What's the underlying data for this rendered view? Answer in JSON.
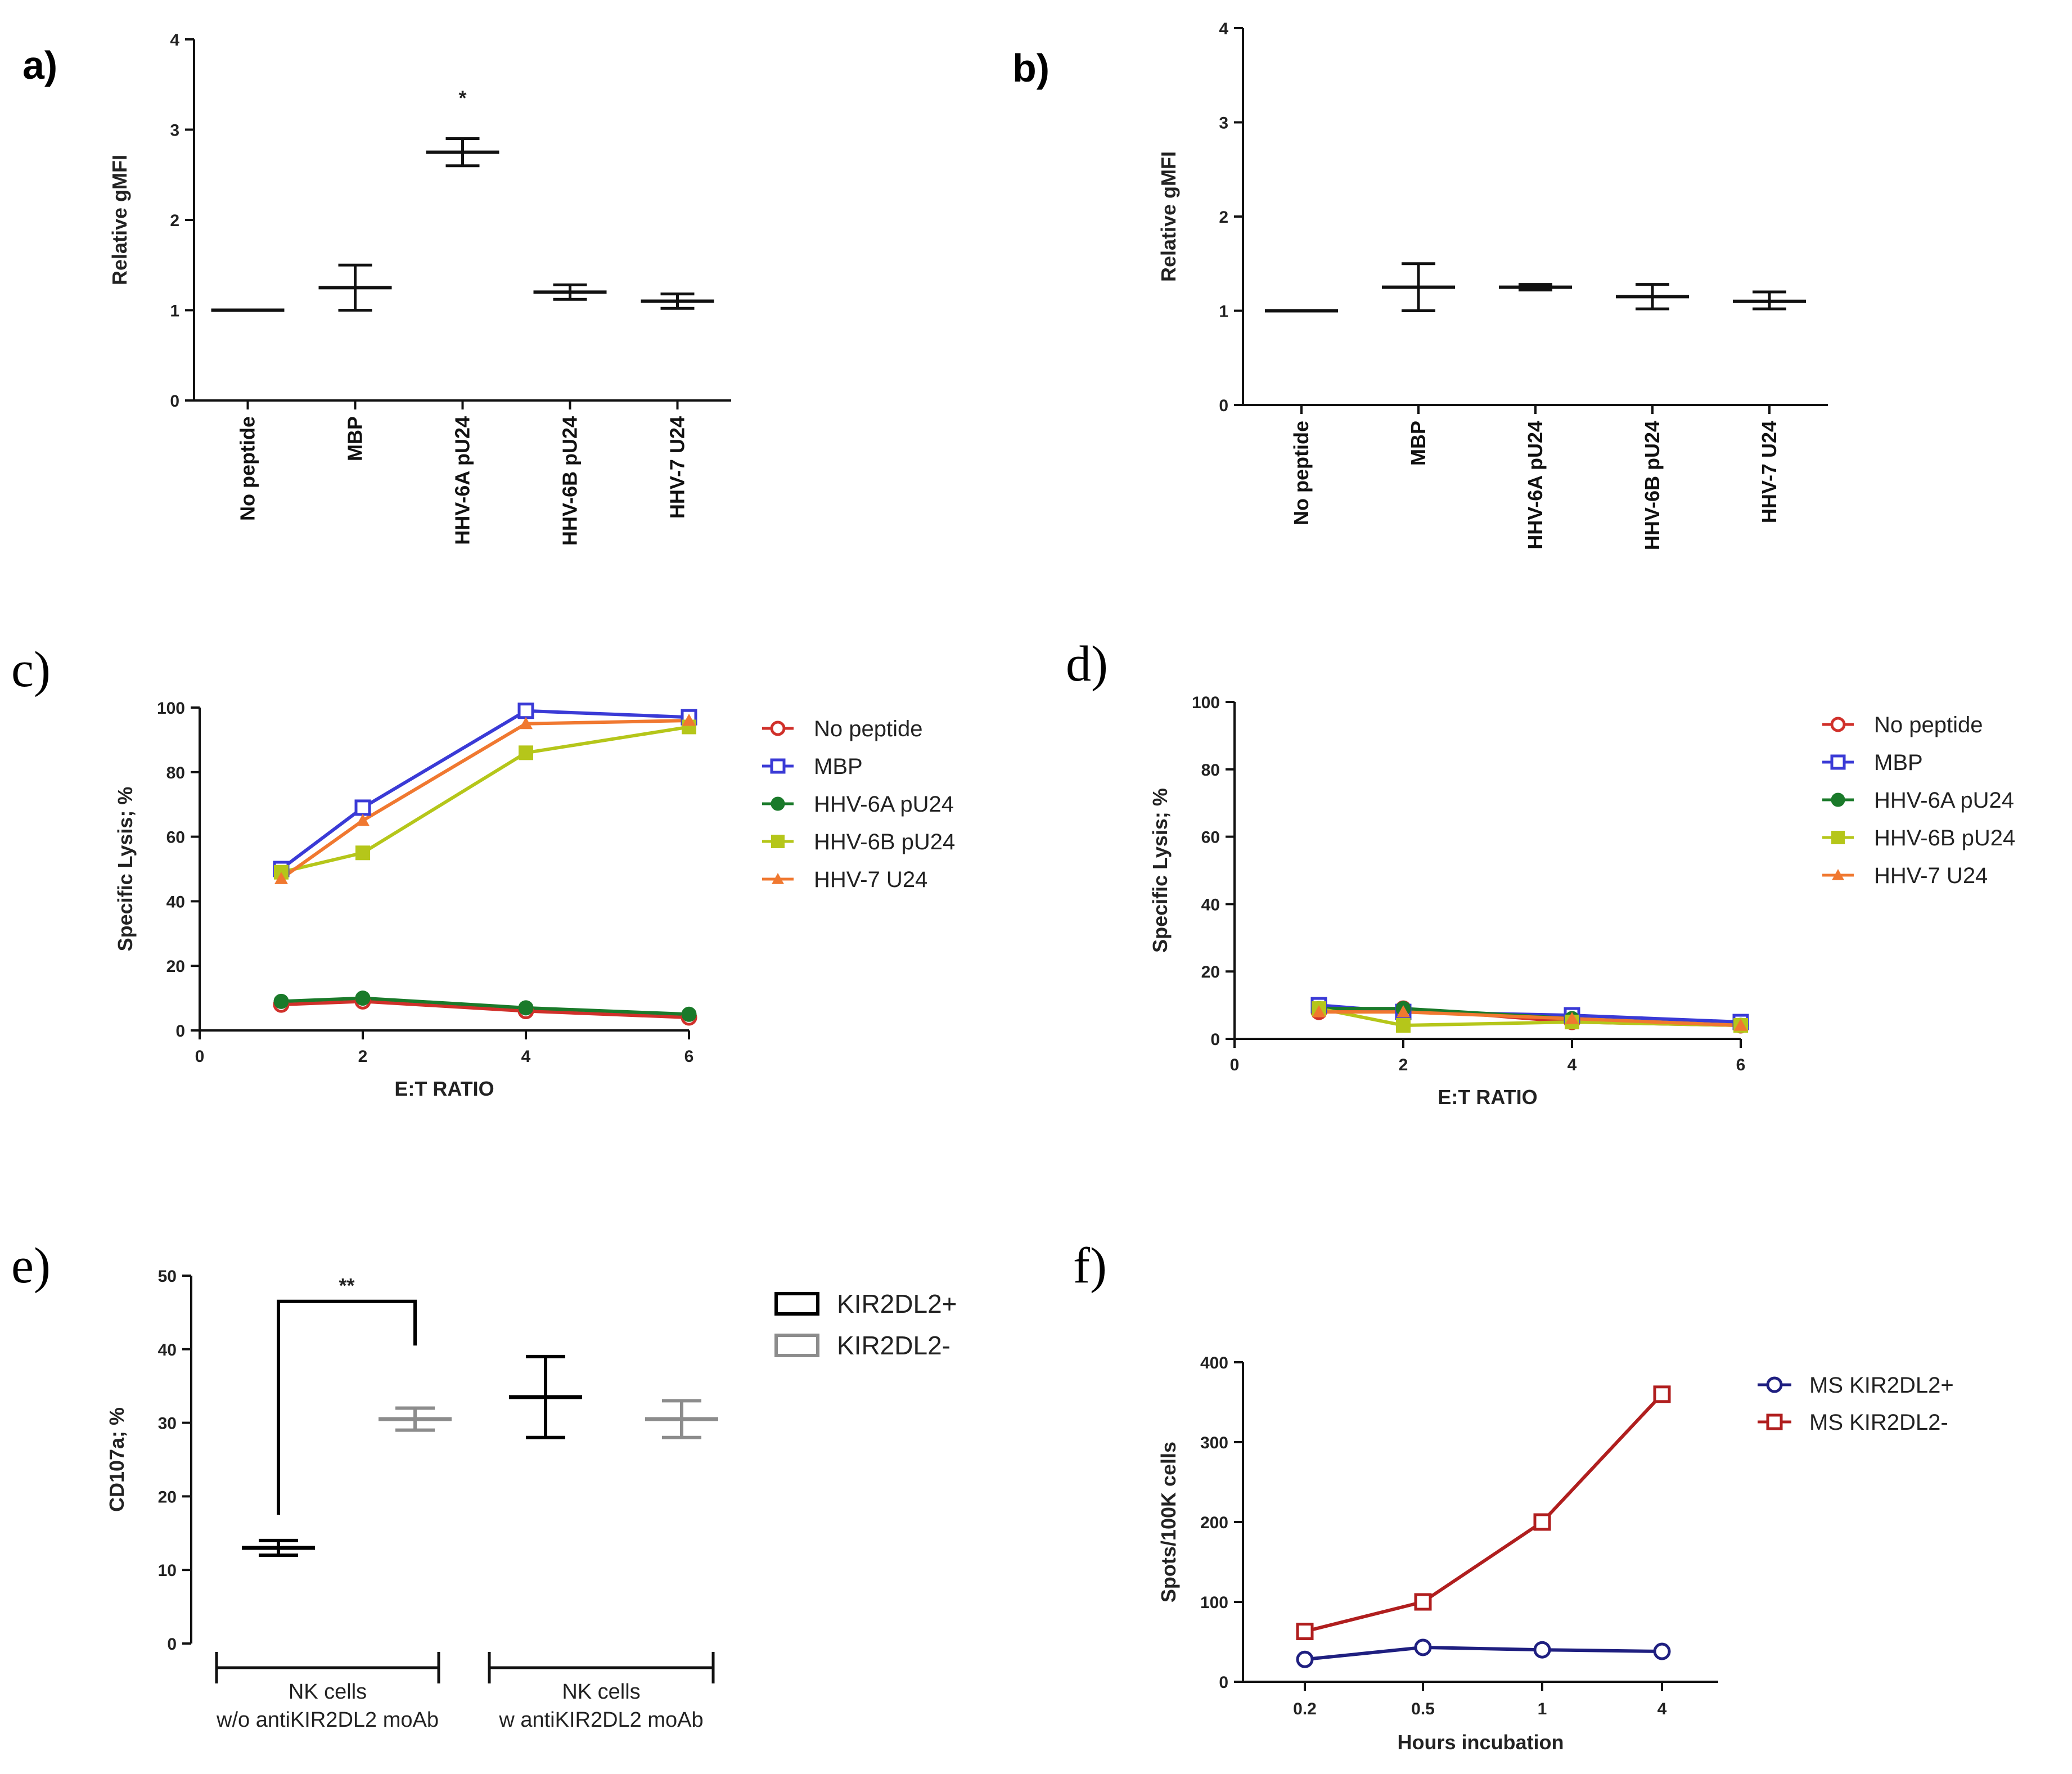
{
  "panels": {
    "a": "a)",
    "b": "b)",
    "c": "c)",
    "d": "d)",
    "e": "e)",
    "f": "f)"
  },
  "chart_data": [
    {
      "id": "a",
      "type": "scatter",
      "ylabel": "Relative gMFI",
      "xlabel": "",
      "ylim": [
        0,
        4
      ],
      "yticks": [
        0,
        1,
        2,
        3,
        4
      ],
      "categories": [
        "No peptide",
        "MBP",
        "HHV-6A pU24",
        "HHV-6B pU24",
        "HHV-7 U24"
      ],
      "mean": [
        1.0,
        1.25,
        2.75,
        1.2,
        1.1
      ],
      "err_low": [
        1.0,
        1.0,
        2.6,
        1.12,
        1.02
      ],
      "err_high": [
        1.0,
        1.5,
        2.9,
        1.28,
        1.18
      ],
      "annotations": [
        {
          "category": "HHV-6A pU24",
          "text": "*",
          "y": 3.4
        }
      ]
    },
    {
      "id": "b",
      "type": "scatter",
      "ylabel": "Relative gMFI",
      "xlabel": "",
      "ylim": [
        0,
        4
      ],
      "yticks": [
        0,
        1,
        2,
        3,
        4
      ],
      "categories": [
        "No peptide",
        "MBP",
        "HHV-6A pU24",
        "HHV-6B pU24",
        "HHV-7 U24"
      ],
      "mean": [
        1.0,
        1.25,
        1.25,
        1.15,
        1.1
      ],
      "err_low": [
        1.0,
        1.0,
        1.22,
        1.02,
        1.02
      ],
      "err_high": [
        1.0,
        1.5,
        1.28,
        1.28,
        1.2
      ],
      "annotations": []
    },
    {
      "id": "c",
      "type": "line",
      "xlabel": "E:T  RATIO",
      "ylabel": "Specific Lysis; %",
      "xlim": [
        0,
        6
      ],
      "xticks": [
        0,
        2,
        4,
        6
      ],
      "ylim": [
        0,
        100
      ],
      "yticks": [
        0,
        20,
        40,
        60,
        80,
        100
      ],
      "x": [
        1,
        2,
        4,
        6
      ],
      "series": [
        {
          "name": "No peptide",
          "color": "#d0302a",
          "marker": "circle-open",
          "values": [
            8,
            9,
            6,
            4
          ]
        },
        {
          "name": "MBP",
          "color": "#3a3ad6",
          "marker": "square-open",
          "values": [
            50,
            69,
            99,
            97
          ]
        },
        {
          "name": "HHV-6A pU24",
          "color": "#1a7a2a",
          "marker": "circle-filled",
          "values": [
            9,
            10,
            7,
            5
          ]
        },
        {
          "name": "HHV-6B pU24",
          "color": "#b5c61a",
          "marker": "square-filled",
          "values": [
            49,
            55,
            86,
            94
          ]
        },
        {
          "name": "HHV-7 U24",
          "color": "#f07830",
          "marker": "triangle-filled",
          "values": [
            47,
            65,
            95,
            96
          ]
        }
      ]
    },
    {
      "id": "d",
      "type": "line",
      "xlabel": "E:T  RATIO",
      "ylabel": "Specific Lysis; %",
      "xlim": [
        0,
        6
      ],
      "xticks": [
        0,
        2,
        4,
        6
      ],
      "ylim": [
        0,
        100
      ],
      "yticks": [
        0,
        20,
        40,
        60,
        80,
        100
      ],
      "x": [
        1,
        2,
        4,
        6
      ],
      "series": [
        {
          "name": "No peptide",
          "color": "#d0302a",
          "marker": "circle-open",
          "values": [
            8,
            9,
            5,
            4
          ]
        },
        {
          "name": "MBP",
          "color": "#3a3ad6",
          "marker": "square-open",
          "values": [
            10,
            8,
            7,
            5
          ]
        },
        {
          "name": "HHV-6A pU24",
          "color": "#1a7a2a",
          "marker": "circle-filled",
          "values": [
            9,
            9,
            6,
            4
          ]
        },
        {
          "name": "HHV-6B pU24",
          "color": "#b5c61a",
          "marker": "square-filled",
          "values": [
            9,
            4,
            5,
            4
          ]
        },
        {
          "name": "HHV-7 U24",
          "color": "#f07830",
          "marker": "triangle-filled",
          "values": [
            8,
            8,
            6,
            4
          ]
        }
      ]
    },
    {
      "id": "e",
      "type": "scatter",
      "ylabel": "CD107a; %",
      "xlabel": "",
      "ylim": [
        0,
        50
      ],
      "yticks": [
        0,
        10,
        20,
        30,
        40,
        50
      ],
      "groups": [
        {
          "label_line1": "NK cells",
          "label_line2": "w/o antiKIR2DL2 moAb"
        },
        {
          "label_line1": "NK cells",
          "label_line2": "w antiKIR2DL2 moAb"
        }
      ],
      "series": [
        {
          "name": "KIR2DL2+",
          "color": "#000000",
          "mean": [
            13,
            33.5
          ],
          "err_low": [
            12,
            28
          ],
          "err_high": [
            14,
            39
          ]
        },
        {
          "name": "KIR2DL2-",
          "color": "#8c8c8c",
          "mean": [
            30.5,
            30.5
          ],
          "err_low": [
            29,
            28
          ],
          "err_high": [
            32,
            33
          ]
        }
      ],
      "significance": {
        "text": "**",
        "between": [
          "KIR2DL2+ w/o",
          "KIR2DL2- w/o"
        ]
      }
    },
    {
      "id": "f",
      "type": "line",
      "xlabel": "Hours incubation",
      "ylabel": "Spots/100K cells",
      "ylim": [
        0,
        400
      ],
      "yticks": [
        0,
        100,
        200,
        300,
        400
      ],
      "categories": [
        "0.2",
        "0.5",
        "1",
        "4"
      ],
      "series": [
        {
          "name": "MS KIR2DL2+",
          "color": "#1f1f80",
          "marker": "circle-open",
          "values": [
            28,
            43,
            40,
            38
          ]
        },
        {
          "name": "MS KIR2DL2-",
          "color": "#b01e1e",
          "marker": "square-open",
          "values": [
            63,
            100,
            200,
            360
          ]
        }
      ]
    }
  ]
}
